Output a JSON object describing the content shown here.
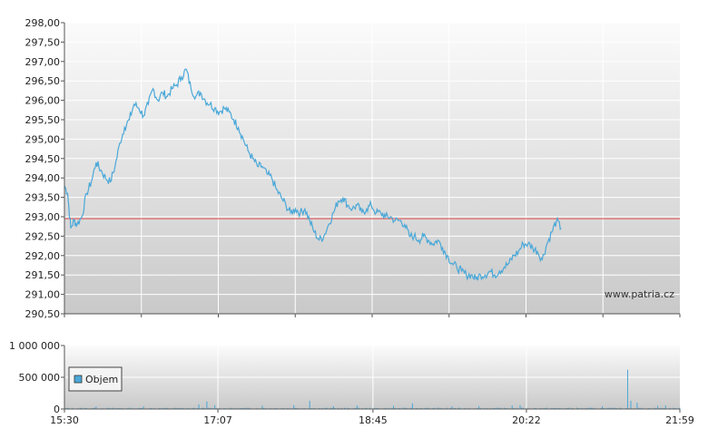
{
  "chart_data": [
    {
      "type": "line",
      "watermark": "www.patria.cz",
      "reference_line": 292.95,
      "ylim": [
        290.5,
        298.0
      ],
      "y_ticks": [
        "298,00",
        "297,50",
        "297,00",
        "296,50",
        "296,00",
        "295,50",
        "295,00",
        "294,50",
        "294,00",
        "293,50",
        "293,00",
        "292,50",
        "292,00",
        "291,50",
        "291,00",
        "290,50"
      ],
      "x_start": "15:30",
      "x_end": "21:59",
      "series": [
        {
          "points": [
            [
              "15:30",
              293.8
            ],
            [
              "15:32",
              293.6
            ],
            [
              "15:34",
              292.7
            ],
            [
              "15:36",
              292.9
            ],
            [
              "15:38",
              292.8
            ],
            [
              "15:41",
              293.0
            ],
            [
              "15:44",
              293.6
            ],
            [
              "15:47",
              293.9
            ],
            [
              "15:50",
              294.4
            ],
            [
              "15:53",
              294.2
            ],
            [
              "15:56",
              294.0
            ],
            [
              "15:59",
              293.9
            ],
            [
              "16:02",
              294.3
            ],
            [
              "16:05",
              294.9
            ],
            [
              "16:08",
              295.3
            ],
            [
              "16:11",
              295.5
            ],
            [
              "16:14",
              295.9
            ],
            [
              "16:17",
              295.8
            ],
            [
              "16:20",
              295.6
            ],
            [
              "16:23",
              295.9
            ],
            [
              "16:26",
              296.3
            ],
            [
              "16:29",
              296.0
            ],
            [
              "16:32",
              296.2
            ],
            [
              "16:35",
              296.1
            ],
            [
              "16:38",
              296.3
            ],
            [
              "16:41",
              296.4
            ],
            [
              "16:44",
              296.6
            ],
            [
              "16:47",
              296.8
            ],
            [
              "16:50",
              296.3
            ],
            [
              "16:53",
              296.1
            ],
            [
              "16:56",
              296.2
            ],
            [
              "16:59",
              296.0
            ],
            [
              "17:02",
              295.9
            ],
            [
              "17:05",
              295.8
            ],
            [
              "17:08",
              295.7
            ],
            [
              "17:11",
              295.8
            ],
            [
              "17:14",
              295.7
            ],
            [
              "17:17",
              295.5
            ],
            [
              "17:20",
              295.3
            ],
            [
              "17:23",
              295.0
            ],
            [
              "17:26",
              294.7
            ],
            [
              "17:29",
              294.5
            ],
            [
              "17:32",
              294.3
            ],
            [
              "17:35",
              294.3
            ],
            [
              "17:38",
              294.1
            ],
            [
              "17:41",
              294.0
            ],
            [
              "17:44",
              293.7
            ],
            [
              "17:47",
              293.5
            ],
            [
              "17:50",
              293.3
            ],
            [
              "17:53",
              293.1
            ],
            [
              "17:56",
              293.2
            ],
            [
              "17:59",
              293.1
            ],
            [
              "18:02",
              293.2
            ],
            [
              "18:05",
              292.9
            ],
            [
              "18:08",
              292.6
            ],
            [
              "18:11",
              292.4
            ],
            [
              "18:14",
              292.5
            ],
            [
              "18:17",
              292.8
            ],
            [
              "18:20",
              293.1
            ],
            [
              "18:23",
              293.4
            ],
            [
              "18:26",
              293.5
            ],
            [
              "18:29",
              293.3
            ],
            [
              "18:32",
              293.2
            ],
            [
              "18:35",
              293.3
            ],
            [
              "18:38",
              293.1
            ],
            [
              "18:41",
              293.2
            ],
            [
              "18:44",
              293.3
            ],
            [
              "18:47",
              293.1
            ],
            [
              "18:50",
              293.1
            ],
            [
              "18:53",
              293.0
            ],
            [
              "18:56",
              293.0
            ],
            [
              "18:59",
              292.9
            ],
            [
              "19:02",
              292.9
            ],
            [
              "19:05",
              292.8
            ],
            [
              "19:08",
              292.5
            ],
            [
              "19:11",
              292.5
            ],
            [
              "19:14",
              292.4
            ],
            [
              "19:17",
              292.5
            ],
            [
              "19:20",
              292.4
            ],
            [
              "19:23",
              292.3
            ],
            [
              "19:26",
              292.4
            ],
            [
              "19:29",
              292.2
            ],
            [
              "19:32",
              292.0
            ],
            [
              "19:35",
              291.8
            ],
            [
              "19:38",
              291.7
            ],
            [
              "19:41",
              291.6
            ],
            [
              "19:44",
              291.5
            ],
            [
              "19:47",
              291.5
            ],
            [
              "19:50",
              291.4
            ],
            [
              "19:53",
              291.5
            ],
            [
              "19:56",
              291.5
            ],
            [
              "19:59",
              291.6
            ],
            [
              "20:02",
              291.5
            ],
            [
              "20:05",
              291.6
            ],
            [
              "20:08",
              291.7
            ],
            [
              "20:11",
              291.8
            ],
            [
              "20:14",
              292.0
            ],
            [
              "20:17",
              292.1
            ],
            [
              "20:20",
              292.3
            ],
            [
              "20:23",
              292.3
            ],
            [
              "20:26",
              292.2
            ],
            [
              "20:29",
              292.1
            ],
            [
              "20:32",
              291.9
            ],
            [
              "20:35",
              292.3
            ],
            [
              "20:38",
              292.6
            ],
            [
              "20:41",
              292.9
            ],
            [
              "20:44",
              292.7
            ]
          ]
        }
      ]
    },
    {
      "type": "bar",
      "ylim": [
        0,
        1000000
      ],
      "y_ticks": [
        "1 000 000",
        "500 000",
        "0"
      ],
      "x_ticks": [
        "15:30",
        "17:07",
        "18:45",
        "20:22",
        "21:59"
      ],
      "legend": {
        "entries": [
          "Objem"
        ],
        "placement": "bottom-left"
      },
      "spikes": [
        [
          "15:50",
          38000
        ],
        [
          "16:20",
          42000
        ],
        [
          "16:55",
          75000
        ],
        [
          "17:00",
          120000
        ],
        [
          "17:05",
          60000
        ],
        [
          "17:35",
          50000
        ],
        [
          "17:55",
          60000
        ],
        [
          "18:05",
          130000
        ],
        [
          "18:20",
          45000
        ],
        [
          "18:35",
          55000
        ],
        [
          "18:58",
          50000
        ],
        [
          "19:10",
          90000
        ],
        [
          "19:35",
          40000
        ],
        [
          "19:52",
          45000
        ],
        [
          "20:13",
          55000
        ],
        [
          "20:18",
          60000
        ],
        [
          "21:10",
          42000
        ],
        [
          "21:26",
          620000
        ],
        [
          "21:28",
          130000
        ],
        [
          "21:32",
          100000
        ],
        [
          "21:45",
          50000
        ],
        [
          "21:50",
          55000
        ]
      ],
      "baseline_volume": 12000
    }
  ]
}
